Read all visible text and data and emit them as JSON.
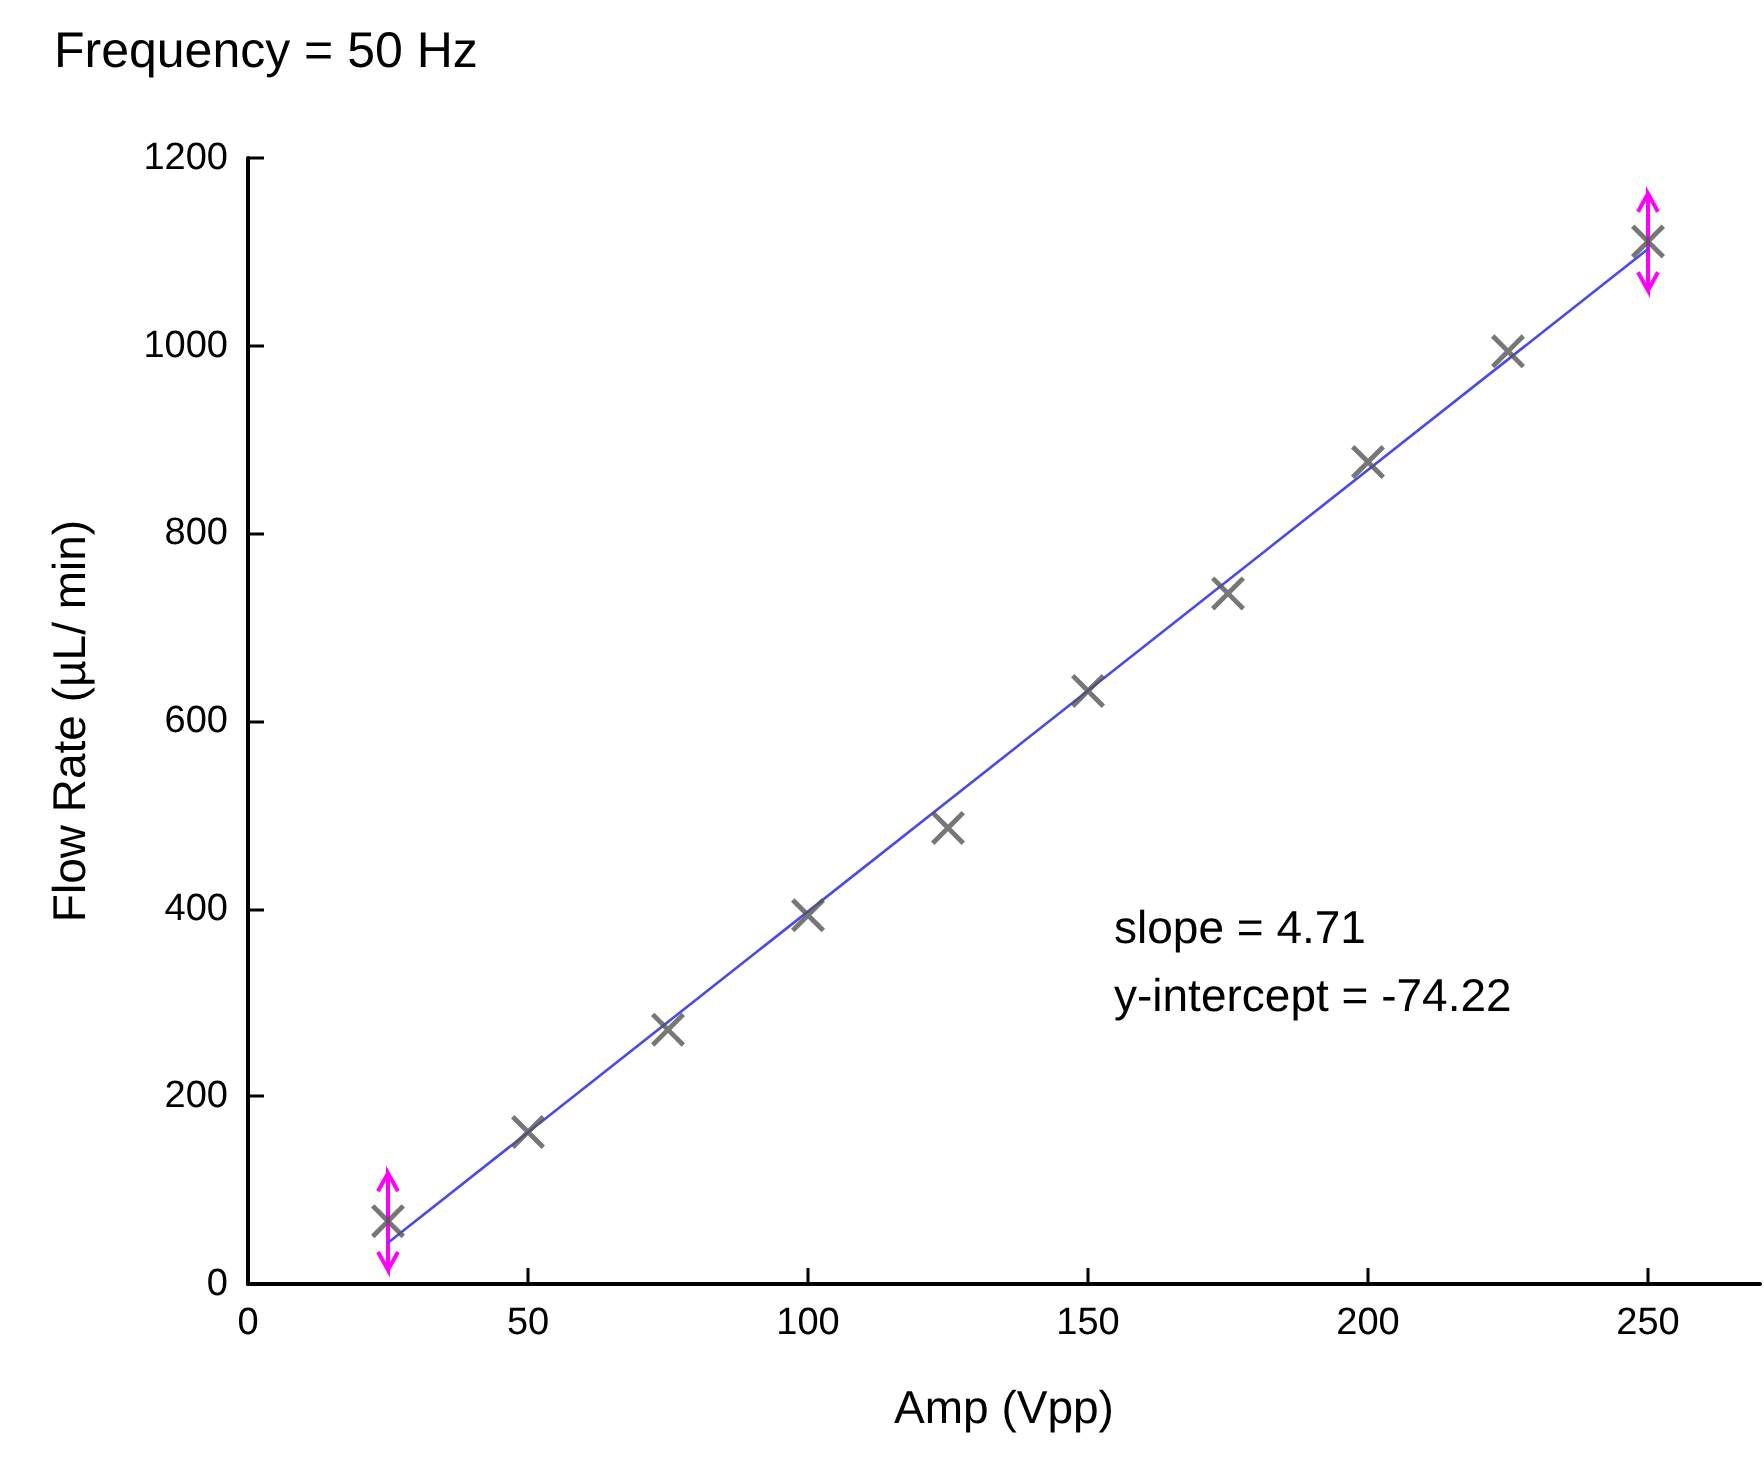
{
  "chart_data": {
    "type": "scatter",
    "title": "Frequency = 50 Hz",
    "xlabel": "Amp (Vpp)",
    "ylabel": "Flow Rate (µL/ min)",
    "annotations": [
      "slope = 4.71",
      "y-intercept = -74.22"
    ],
    "x": [
      25,
      50,
      75,
      100,
      125,
      150,
      175,
      200,
      225,
      250
    ],
    "series": [
      {
        "color": "#555555",
        "marker": "cross",
        "values": [
          67,
          162,
          271,
          393,
          486,
          632,
          736,
          876,
          994,
          1111
        ],
        "errors": [
          [
            15,
            118
          ],
          null,
          null,
          null,
          null,
          null,
          null,
          null,
          null,
          [
            1059,
            1162
          ]
        ]
      },
      {
        "type": "line",
        "color": "#4a4ae6",
        "marker": "none",
        "line_style": "solid",
        "x": [
          25,
          250
        ],
        "values": [
          44,
          1103
        ]
      }
    ],
    "xlim": [
      0,
      270
    ],
    "xticks": [
      0,
      50,
      100,
      150,
      200,
      250
    ],
    "ylim": [
      0,
      1200
    ],
    "yticks": [
      0,
      200,
      400,
      600,
      800,
      1000,
      1200
    ],
    "grid": false
  }
}
